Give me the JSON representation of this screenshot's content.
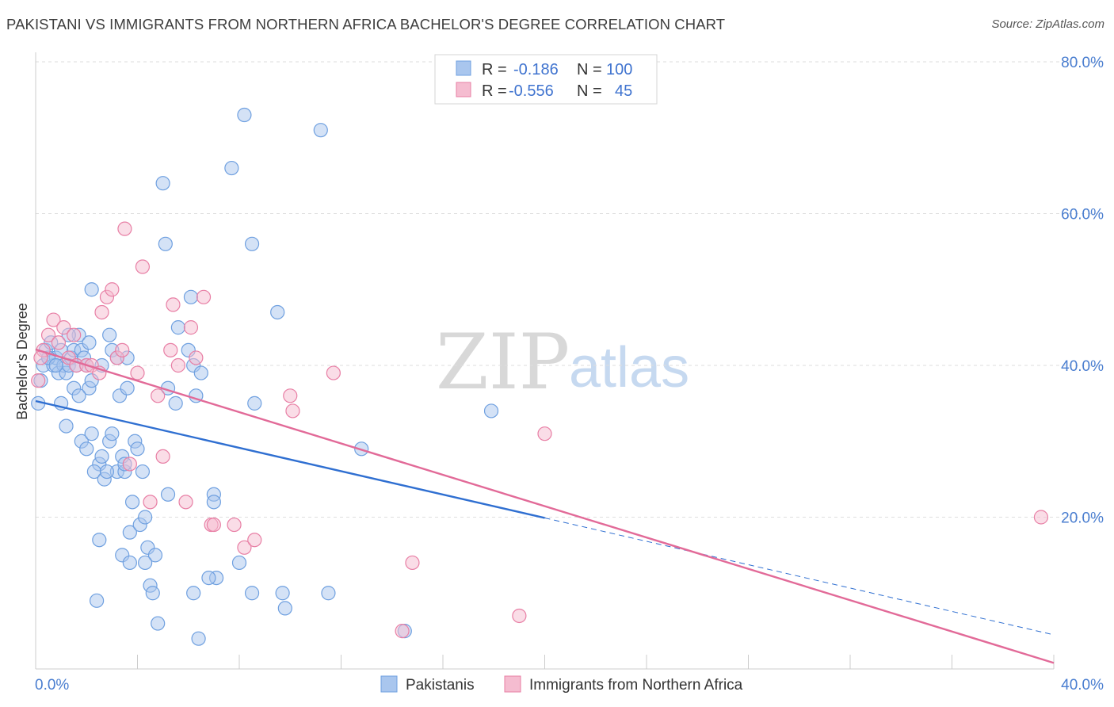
{
  "title": "PAKISTANI VS IMMIGRANTS FROM NORTHERN AFRICA BACHELOR'S DEGREE CORRELATION CHART",
  "source": "Source: ZipAtlas.com",
  "watermark": {
    "zip": "ZIP",
    "atlas": "atlas"
  },
  "colors": {
    "blue": "#6fa0e0",
    "blue_fill": "#a9c6ee",
    "pink": "#e87fa5",
    "pink_fill": "#f5bcd0",
    "blue_line": "#2f6fd1",
    "pink_line": "#e26a98"
  },
  "legend": {
    "rows": [
      {
        "r_label": "R =",
        "r_value": "-0.186",
        "n_label": "N =",
        "n_value": "100"
      },
      {
        "r_label": "R =",
        "r_value": "-0.556",
        "n_label": "N =",
        "n_value": "45"
      }
    ]
  },
  "bottom_legend": [
    "Pakistanis",
    "Immigrants from Northern Africa"
  ],
  "chart_data": {
    "type": "scatter",
    "ylabel": "Bachelor's Degree",
    "xlim": [
      0,
      40
    ],
    "ylim": [
      0,
      80
    ],
    "x_ticks": [
      "0.0%",
      "40.0%"
    ],
    "y_ticks": [
      {
        "v": 20,
        "label": "20.0%"
      },
      {
        "v": 40,
        "label": "40.0%"
      },
      {
        "v": 60,
        "label": "60.0%"
      },
      {
        "v": 80,
        "label": "80.0%"
      }
    ],
    "series": [
      {
        "name": "Pakistanis",
        "points": [
          [
            0.1,
            35
          ],
          [
            0.3,
            40
          ],
          [
            0.4,
            42
          ],
          [
            0.5,
            41
          ],
          [
            0.6,
            43
          ],
          [
            0.7,
            40
          ],
          [
            0.8,
            41
          ],
          [
            0.9,
            39
          ],
          [
            1.0,
            42
          ],
          [
            1.1,
            40
          ],
          [
            1.2,
            39
          ],
          [
            1.3,
            40
          ],
          [
            1.4,
            41
          ],
          [
            1.5,
            42
          ],
          [
            1.6,
            40
          ],
          [
            1.7,
            44
          ],
          [
            1.8,
            42
          ],
          [
            1.9,
            41
          ],
          [
            2.0,
            40
          ],
          [
            2.1,
            37
          ],
          [
            2.2,
            38
          ],
          [
            1.0,
            35
          ],
          [
            1.2,
            32
          ],
          [
            1.5,
            37
          ],
          [
            1.8,
            30
          ],
          [
            2.0,
            29
          ],
          [
            2.2,
            31
          ],
          [
            2.5,
            27
          ],
          [
            2.3,
            26
          ],
          [
            2.6,
            28
          ],
          [
            2.7,
            25
          ],
          [
            2.9,
            30
          ],
          [
            3.0,
            31
          ],
          [
            3.2,
            26
          ],
          [
            3.3,
            36
          ],
          [
            3.4,
            28
          ],
          [
            3.5,
            26
          ],
          [
            3.6,
            37
          ],
          [
            3.7,
            18
          ],
          [
            3.8,
            22
          ],
          [
            3.9,
            30
          ],
          [
            4.0,
            29
          ],
          [
            4.1,
            19
          ],
          [
            4.2,
            26
          ],
          [
            4.3,
            20
          ],
          [
            4.4,
            16
          ],
          [
            4.5,
            11
          ],
          [
            4.6,
            10
          ],
          [
            4.7,
            15
          ],
          [
            4.8,
            6
          ],
          [
            3.0,
            42
          ],
          [
            3.2,
            41
          ],
          [
            3.6,
            41
          ],
          [
            2.6,
            40
          ],
          [
            2.9,
            44
          ],
          [
            2.2,
            50
          ],
          [
            2.5,
            17
          ],
          [
            2.4,
            9
          ],
          [
            3.4,
            15
          ],
          [
            3.7,
            14
          ],
          [
            4.3,
            14
          ],
          [
            5.0,
            64
          ],
          [
            5.1,
            56
          ],
          [
            5.2,
            37
          ],
          [
            5.5,
            35
          ],
          [
            5.6,
            45
          ],
          [
            6.0,
            42
          ],
          [
            6.1,
            49
          ],
          [
            6.2,
            40
          ],
          [
            6.3,
            36
          ],
          [
            6.5,
            39
          ],
          [
            7.0,
            23
          ],
          [
            7.1,
            12
          ],
          [
            6.8,
            12
          ],
          [
            6.2,
            10
          ],
          [
            6.4,
            4
          ],
          [
            5.2,
            23
          ],
          [
            7.7,
            66
          ],
          [
            8.2,
            73
          ],
          [
            8.5,
            56
          ],
          [
            8.6,
            35
          ],
          [
            8.5,
            10
          ],
          [
            8.0,
            14
          ],
          [
            7.0,
            22
          ],
          [
            9.5,
            47
          ],
          [
            9.7,
            10
          ],
          [
            9.8,
            8
          ],
          [
            11.2,
            71
          ],
          [
            11.5,
            10
          ],
          [
            12.8,
            29
          ],
          [
            14.5,
            5
          ],
          [
            17.9,
            34
          ],
          [
            0.2,
            38
          ],
          [
            0.5,
            41
          ],
          [
            0.8,
            40
          ],
          [
            1.3,
            44
          ],
          [
            2.1,
            43
          ],
          [
            1.7,
            36
          ],
          [
            2.8,
            26
          ],
          [
            3.5,
            27
          ]
        ]
      },
      {
        "name": "Immigrants from Northern Africa",
        "points": [
          [
            0.1,
            38
          ],
          [
            0.3,
            42
          ],
          [
            0.5,
            44
          ],
          [
            0.7,
            46
          ],
          [
            0.9,
            43
          ],
          [
            1.1,
            45
          ],
          [
            1.3,
            41
          ],
          [
            1.5,
            44
          ],
          [
            1.6,
            40
          ],
          [
            2.0,
            40
          ],
          [
            2.2,
            40
          ],
          [
            2.5,
            39
          ],
          [
            2.6,
            47
          ],
          [
            2.8,
            49
          ],
          [
            3.0,
            50
          ],
          [
            3.2,
            41
          ],
          [
            3.4,
            42
          ],
          [
            3.5,
            58
          ],
          [
            3.7,
            27
          ],
          [
            4.0,
            39
          ],
          [
            4.2,
            53
          ],
          [
            4.5,
            22
          ],
          [
            4.8,
            36
          ],
          [
            5.0,
            28
          ],
          [
            5.3,
            42
          ],
          [
            5.4,
            48
          ],
          [
            5.6,
            40
          ],
          [
            5.9,
            22
          ],
          [
            6.1,
            45
          ],
          [
            6.3,
            41
          ],
          [
            6.6,
            49
          ],
          [
            6.9,
            19
          ],
          [
            7.0,
            19
          ],
          [
            7.8,
            19
          ],
          [
            8.2,
            16
          ],
          [
            8.6,
            17
          ],
          [
            10.0,
            36
          ],
          [
            10.1,
            34
          ],
          [
            11.7,
            39
          ],
          [
            14.4,
            5
          ],
          [
            14.8,
            14
          ],
          [
            19.0,
            7
          ],
          [
            20.0,
            31
          ],
          [
            39.5,
            20
          ],
          [
            0.2,
            41
          ]
        ]
      }
    ],
    "trend_lines": [
      {
        "series": "Pakistanis",
        "solid_from": [
          0,
          35.3
        ],
        "solid_to": [
          20,
          19.9
        ],
        "dashed_to": [
          40,
          4.5
        ]
      },
      {
        "series": "Immigrants from Northern Africa",
        "from": [
          0,
          42.1
        ],
        "to": [
          40,
          0.8
        ]
      }
    ]
  }
}
